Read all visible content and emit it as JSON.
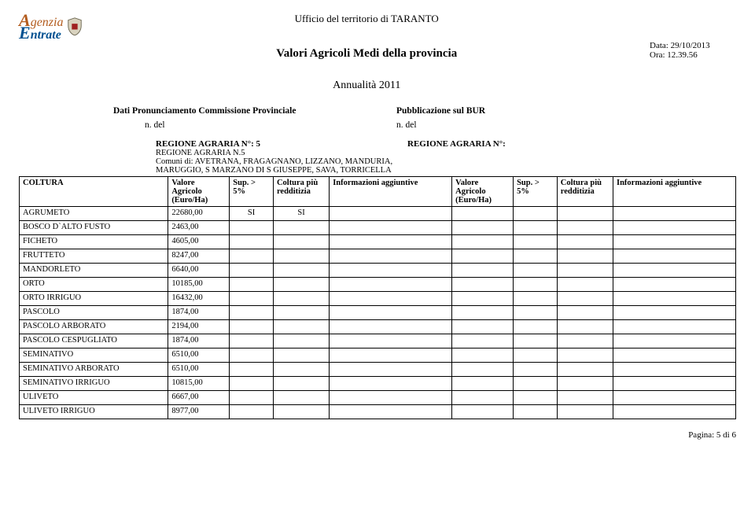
{
  "logo": {
    "line1_a": "A",
    "line1_rest": "genzia",
    "line2_a": "E",
    "line2_rest": "ntrate"
  },
  "header": {
    "ufficio": "Ufficio del territorio di TARANTO",
    "title": "Valori Agricoli Medi della provincia",
    "annualita": "Annualità 2011",
    "data": "Data: 29/10/2013",
    "ora": "Ora: 12.39.56"
  },
  "meta": {
    "left_label": "Dati Pronunciamento Commissione Provinciale",
    "right_label": "Pubblicazione sul BUR",
    "ndel": "n. del"
  },
  "region_left": {
    "title": "REGIONE AGRARIA N°: 5",
    "sub": "REGIONE AGRARIA N.5",
    "comuni": "Comuni di: AVETRANA, FRAGAGNANO, LIZZANO, MANDURIA, MARUGGIO, S MARZANO DI S GIUSEPPE, SAVA, TORRICELLA"
  },
  "region_right": {
    "title": "REGIONE AGRARIA N°:"
  },
  "columns": {
    "coltura": "COLTURA",
    "valore": "Valore Agricolo (Euro/Ha)",
    "sup": "Sup. > 5%",
    "redditizia": "Coltura più redditizia",
    "info": "Informazioni aggiuntive"
  },
  "rows": [
    {
      "name": "AGRUMETO",
      "val": "22680,00",
      "sup": "SI",
      "red": "SI"
    },
    {
      "name": "BOSCO D`ALTO FUSTO",
      "val": "2463,00",
      "sup": "",
      "red": ""
    },
    {
      "name": "FICHETO",
      "val": "4605,00",
      "sup": "",
      "red": ""
    },
    {
      "name": "FRUTTETO",
      "val": "8247,00",
      "sup": "",
      "red": ""
    },
    {
      "name": "MANDORLETO",
      "val": "6640,00",
      "sup": "",
      "red": ""
    },
    {
      "name": "ORTO",
      "val": "10185,00",
      "sup": "",
      "red": ""
    },
    {
      "name": "ORTO IRRIGUO",
      "val": "16432,00",
      "sup": "",
      "red": ""
    },
    {
      "name": "PASCOLO",
      "val": "1874,00",
      "sup": "",
      "red": ""
    },
    {
      "name": "PASCOLO ARBORATO",
      "val": "2194,00",
      "sup": "",
      "red": ""
    },
    {
      "name": "PASCOLO CESPUGLIATO",
      "val": "1874,00",
      "sup": "",
      "red": ""
    },
    {
      "name": "SEMINATIVO",
      "val": "6510,00",
      "sup": "",
      "red": ""
    },
    {
      "name": "SEMINATIVO ARBORATO",
      "val": "6510,00",
      "sup": "",
      "red": ""
    },
    {
      "name": "SEMINATIVO IRRIGUO",
      "val": "10815,00",
      "sup": "",
      "red": ""
    },
    {
      "name": "ULIVETO",
      "val": "6667,00",
      "sup": "",
      "red": ""
    },
    {
      "name": "ULIVETO IRRIGUO",
      "val": "8977,00",
      "sup": "",
      "red": ""
    }
  ],
  "footer": "Pagina: 5 di 6",
  "colors": {
    "orange": "#b35c1e",
    "blue": "#005090",
    "text": "#000000",
    "bg": "#ffffff"
  }
}
